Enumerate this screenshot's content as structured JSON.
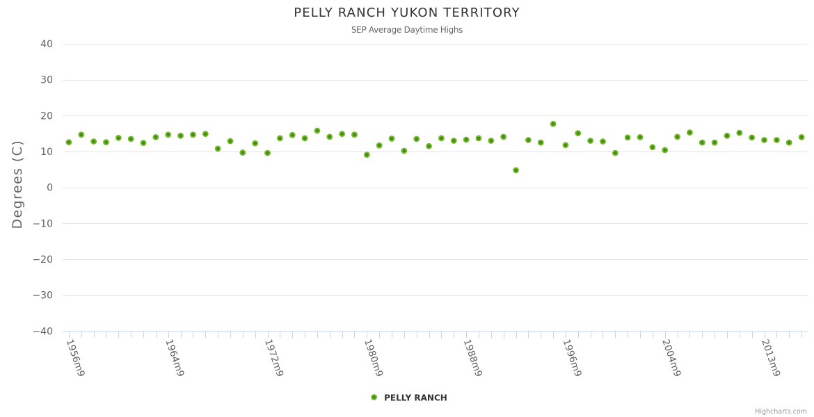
{
  "chart": {
    "title": "PELLY RANCH YUKON TERRITORY",
    "subtitle": "SEP Average Daytime Highs",
    "credits": "Highcharts.com",
    "legend": {
      "series_label": "PELLY RANCH"
    }
  },
  "chart_data": {
    "type": "scatter",
    "title": "PELLY RANCH YUKON TERRITORY",
    "subtitle": "SEP Average Daytime Highs",
    "xlabel": "",
    "ylabel": "Degrees (C)",
    "ylim": [
      -40,
      40
    ],
    "y_tick_interval": 10,
    "grid": true,
    "legend_position": "bottom-center",
    "x_label_step": 8,
    "visible_x_tick_labels": [
      "1956m9",
      "1964m9",
      "1972m9",
      "1980m9",
      "1988m9",
      "1996m9",
      "2004m9",
      "2013m9"
    ],
    "series": [
      {
        "name": "PELLY RANCH",
        "marker_ring_color": "#74b62a",
        "marker_core_color": "#3d8a16",
        "categories": [
          "1956m9",
          "1957m9",
          "1958m9",
          "1959m9",
          "1960m9",
          "1961m9",
          "1962m9",
          "1963m9",
          "1964m9",
          "1965m9",
          "1966m9",
          "1967m9",
          "1968m9",
          "1969m9",
          "1970m9",
          "1971m9",
          "1972m9",
          "1973m9",
          "1974m9",
          "1975m9",
          "1976m9",
          "1977m9",
          "1978m9",
          "1979m9",
          "1980m9",
          "1981m9",
          "1982m9",
          "1983m9",
          "1984m9",
          "1985m9",
          "1986m9",
          "1987m9",
          "1988m9",
          "1989m9",
          "1990m9",
          "1991m9",
          "1992m9",
          "1993m9",
          "1994m9",
          "1995m9",
          "1996m9",
          "1997m9",
          "1998m9",
          "1999m9",
          "2000m9",
          "2001m9",
          "2002m9",
          "2003m9",
          "2004m9",
          "2005m9",
          "2006m9",
          "2007m9",
          "2009m9",
          "2010m9",
          "2011m9",
          "2012m9",
          "2013m9",
          "2014m9",
          "2015m9",
          "2016m9"
        ],
        "values": [
          12.6,
          14.7,
          12.8,
          12.6,
          13.8,
          13.5,
          12.4,
          14.0,
          14.7,
          14.4,
          14.7,
          14.9,
          10.8,
          12.9,
          9.7,
          12.3,
          9.6,
          13.7,
          14.6,
          13.7,
          15.8,
          14.1,
          14.9,
          14.7,
          9.1,
          11.7,
          13.6,
          10.2,
          13.5,
          11.5,
          13.7,
          13.0,
          13.3,
          13.7,
          13.0,
          14.1,
          4.8,
          13.2,
          12.5,
          17.7,
          11.8,
          15.1,
          13.0,
          12.8,
          9.6,
          13.9,
          14.0,
          11.2,
          10.4,
          14.1,
          15.3,
          12.5,
          12.5,
          14.4,
          15.2,
          13.9,
          13.2,
          13.2,
          12.5,
          14.0
        ]
      }
    ]
  },
  "style": {
    "background_color": "#ffffff",
    "grid_color": "#e6e6e6",
    "axis_line_color": "#ccd6eb",
    "tick_color": "#ccd6eb",
    "title_color": "#333333",
    "subtitle_color": "#666666",
    "axis_label_color": "#606060",
    "axis_title_color": "#666666",
    "legend_text_color": "#333333",
    "credits_color": "#999999"
  }
}
